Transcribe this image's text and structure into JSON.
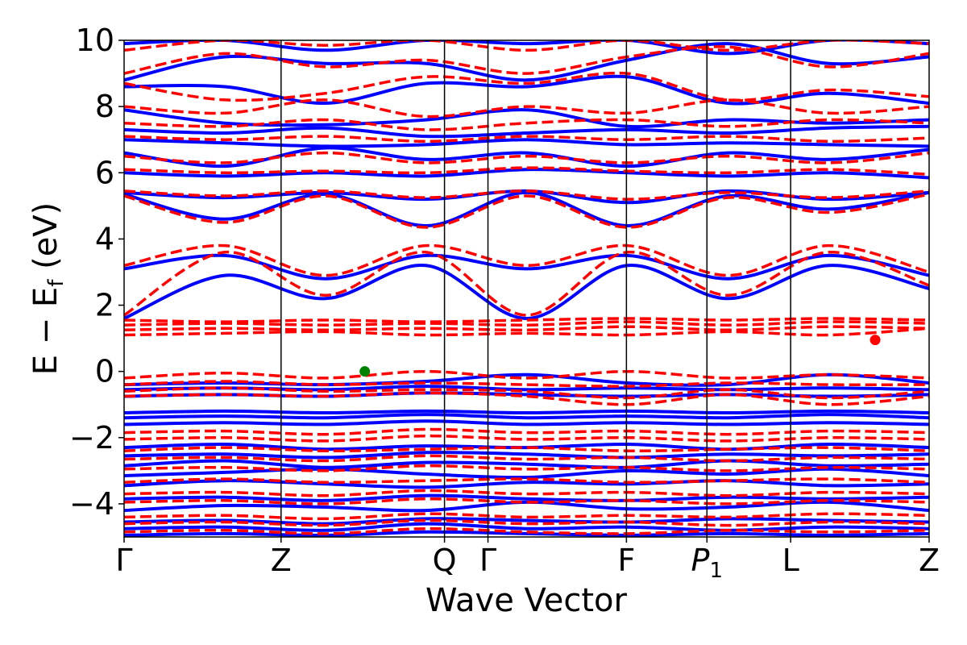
{
  "chart_data": {
    "type": "line",
    "title": "",
    "xlabel": "Wave Vector",
    "ylabel": "E − E_f (eV)",
    "ylabel_parts": {
      "main": "E − E",
      "sub": "f",
      "unit": " (eV)"
    },
    "ylim": [
      -5,
      10
    ],
    "yticks": [
      -4,
      -2,
      0,
      2,
      4,
      6,
      8,
      10
    ],
    "ytick_labels": [
      "−4",
      "−2",
      "0",
      "2",
      "4",
      "6",
      "8",
      "10"
    ],
    "xlim": [
      0,
      10
    ],
    "kpoints": [
      {
        "label": "Γ",
        "x": 0.0
      },
      {
        "label": "Z",
        "x": 1.95
      },
      {
        "label": "Q",
        "x": 3.98
      },
      {
        "label": "Γ",
        "x": 4.52
      },
      {
        "label": "F",
        "x": 6.24
      },
      {
        "label": "P",
        "sub": "1",
        "x": 7.24
      },
      {
        "label": "L",
        "x": 8.28
      },
      {
        "label": "Z",
        "x": 10.0
      }
    ],
    "grid": false,
    "legend": "none",
    "series": [
      {
        "style": "solid",
        "color": "#0000ff",
        "bands": [
          [
            -4.95,
            -4.9,
            -4.95,
            -4.85,
            -4.9,
            -4.95,
            -4.9,
            -4.95,
            -4.9
          ],
          [
            -4.75,
            -4.7,
            -4.8,
            -4.6,
            -4.75,
            -4.7,
            -4.8,
            -4.7,
            -4.75
          ],
          [
            -4.55,
            -4.5,
            -4.6,
            -4.45,
            -4.5,
            -4.55,
            -4.45,
            -4.5,
            -4.55
          ],
          [
            -4.2,
            -4.05,
            -4.1,
            -4.2,
            -3.95,
            -4.15,
            -4.1,
            -3.95,
            -4.2
          ],
          [
            -3.85,
            -3.8,
            -3.9,
            -3.75,
            -3.85,
            -3.9,
            -3.8,
            -3.85,
            -3.8
          ],
          [
            -3.45,
            -3.3,
            -3.4,
            -3.5,
            -3.35,
            -3.4,
            -3.3,
            -3.45,
            -3.4
          ],
          [
            -3.15,
            -3.05,
            -2.95,
            -3.1,
            -3.2,
            -3.0,
            -3.1,
            -2.95,
            -3.15
          ],
          [
            -2.85,
            -2.7,
            -2.9,
            -2.75,
            -2.8,
            -2.9,
            -2.7,
            -2.85,
            -2.8
          ],
          [
            -2.55,
            -2.5,
            -2.6,
            -2.45,
            -2.5,
            -2.6,
            -2.5,
            -2.55,
            -2.5
          ],
          [
            -2.3,
            -2.2,
            -2.35,
            -2.25,
            -2.3,
            -2.2,
            -2.35,
            -2.2,
            -2.3
          ],
          [
            -1.6,
            -1.55,
            -1.6,
            -1.5,
            -1.6,
            -1.55,
            -1.6,
            -1.55,
            -1.6
          ],
          [
            -1.4,
            -1.35,
            -1.4,
            -1.3,
            -1.4,
            -1.35,
            -1.4,
            -1.3,
            -1.4
          ],
          [
            -1.25,
            -1.2,
            -1.25,
            -1.2,
            -1.25,
            -1.2,
            -1.25,
            -1.2,
            -1.25
          ],
          [
            -0.75,
            -0.7,
            -0.75,
            -0.65,
            -0.7,
            -0.75,
            -0.7,
            -0.75,
            -0.7
          ],
          [
            -0.55,
            -0.5,
            -0.55,
            -0.45,
            -0.55,
            -0.5,
            -0.55,
            -0.5,
            -0.55
          ],
          [
            -0.4,
            -0.35,
            -0.4,
            -0.3,
            -0.1,
            -0.35,
            -0.4,
            -0.1,
            -0.35
          ],
          [
            1.6,
            2.9,
            2.2,
            3.2,
            1.6,
            3.2,
            2.2,
            3.2,
            2.5
          ],
          [
            3.1,
            3.5,
            2.8,
            3.5,
            3.1,
            3.5,
            2.8,
            3.5,
            2.9
          ],
          [
            5.35,
            4.6,
            5.35,
            4.4,
            5.4,
            4.4,
            5.3,
            4.9,
            5.4
          ],
          [
            5.4,
            5.25,
            5.4,
            5.2,
            5.45,
            5.1,
            5.45,
            5.2,
            5.4
          ],
          [
            6.0,
            5.9,
            6.0,
            5.9,
            6.1,
            6.0,
            5.9,
            6.0,
            5.85
          ],
          [
            6.6,
            6.2,
            6.75,
            6.4,
            6.6,
            6.2,
            6.6,
            6.4,
            6.7
          ],
          [
            7.0,
            6.9,
            6.8,
            6.85,
            7.0,
            6.85,
            6.9,
            6.85,
            6.8
          ],
          [
            7.3,
            7.2,
            7.35,
            7.1,
            7.2,
            7.3,
            7.2,
            7.35,
            7.4
          ],
          [
            7.9,
            7.5,
            7.45,
            7.6,
            7.9,
            7.4,
            7.6,
            7.5,
            7.6
          ],
          [
            8.6,
            8.6,
            8.1,
            8.7,
            8.6,
            8.9,
            8.1,
            8.4,
            8.1
          ],
          [
            8.8,
            9.5,
            9.3,
            9.3,
            8.8,
            9.4,
            9.9,
            9.3,
            9.5
          ],
          [
            9.9,
            10.0,
            9.7,
            10.0,
            9.9,
            10.0,
            9.6,
            10.0,
            9.9
          ]
        ]
      },
      {
        "style": "dashed",
        "color": "#ff0000",
        "bands": [
          [
            -4.85,
            -4.8,
            -4.9,
            -4.75,
            -4.85,
            -4.9,
            -4.8,
            -4.85,
            -4.8
          ],
          [
            -4.6,
            -4.55,
            -4.65,
            -4.5,
            -4.6,
            -4.55,
            -4.65,
            -4.55,
            -4.6
          ],
          [
            -4.4,
            -4.35,
            -4.45,
            -4.3,
            -4.4,
            -4.35,
            -4.4,
            -4.3,
            -4.35
          ],
          [
            -3.95,
            -3.9,
            -4.0,
            -3.85,
            -3.95,
            -3.9,
            -4.0,
            -3.9,
            -3.95
          ],
          [
            -3.7,
            -3.65,
            -3.75,
            -3.6,
            -3.7,
            -3.65,
            -3.75,
            -3.65,
            -3.7
          ],
          [
            -3.35,
            -3.25,
            -3.35,
            -3.3,
            -3.25,
            -3.35,
            -3.3,
            -3.25,
            -3.35
          ],
          [
            -2.95,
            -2.9,
            -3.0,
            -2.85,
            -2.95,
            -2.9,
            -3.0,
            -2.9,
            -2.95
          ],
          [
            -2.65,
            -2.6,
            -2.7,
            -2.55,
            -2.65,
            -2.6,
            -2.7,
            -2.6,
            -2.65
          ],
          [
            -2.4,
            -2.3,
            -2.4,
            -2.35,
            -2.3,
            -2.4,
            -2.35,
            -2.3,
            -2.4
          ],
          [
            -2.05,
            -2.0,
            -2.1,
            -1.95,
            -2.05,
            -2.0,
            -2.1,
            -2.0,
            -2.05
          ],
          [
            -1.85,
            -1.8,
            -1.9,
            -1.75,
            -1.85,
            -1.8,
            -1.9,
            -1.8,
            -1.85
          ],
          [
            -0.75,
            -0.7,
            -0.75,
            -0.65,
            -0.75,
            -1.0,
            -0.7,
            -1.0,
            -0.75
          ],
          [
            -0.6,
            -0.5,
            -0.6,
            -0.55,
            -0.6,
            -0.8,
            -0.55,
            -0.8,
            -0.6
          ],
          [
            -0.4,
            -0.3,
            -0.4,
            -0.35,
            -0.4,
            -0.45,
            -0.35,
            -0.4,
            -0.4
          ],
          [
            -0.2,
            -0.05,
            -0.2,
            0.0,
            -0.2,
            0.0,
            -0.2,
            -0.1,
            -0.2
          ],
          [
            1.1,
            1.15,
            1.2,
            1.1,
            1.15,
            1.1,
            1.2,
            1.1,
            1.3
          ],
          [
            1.25,
            1.3,
            1.25,
            1.3,
            1.25,
            1.35,
            1.25,
            1.35,
            1.3
          ],
          [
            1.4,
            1.45,
            1.4,
            1.45,
            1.4,
            1.5,
            1.4,
            1.5,
            1.45
          ],
          [
            1.55,
            1.5,
            1.55,
            1.5,
            1.55,
            1.6,
            1.55,
            1.6,
            1.55
          ],
          [
            1.7,
            3.6,
            2.3,
            3.6,
            1.7,
            3.6,
            2.3,
            3.6,
            2.6
          ],
          [
            3.2,
            3.8,
            2.9,
            3.8,
            3.2,
            3.8,
            2.9,
            3.8,
            3.0
          ],
          [
            5.3,
            4.5,
            5.3,
            4.35,
            5.3,
            4.35,
            5.25,
            4.8,
            5.35
          ],
          [
            5.45,
            5.3,
            5.45,
            5.25,
            5.45,
            5.2,
            5.4,
            5.25,
            5.45
          ],
          [
            6.1,
            6.0,
            6.05,
            6.0,
            6.15,
            6.05,
            6.0,
            6.1,
            5.95
          ],
          [
            6.5,
            6.3,
            6.6,
            6.3,
            6.5,
            6.3,
            6.5,
            6.3,
            6.6
          ],
          [
            7.1,
            7.0,
            7.1,
            6.95,
            7.1,
            7.0,
            7.1,
            6.95,
            7.05
          ],
          [
            7.5,
            7.4,
            7.6,
            7.3,
            7.5,
            7.6,
            7.4,
            7.6,
            7.5
          ],
          [
            8.0,
            7.8,
            8.2,
            7.7,
            8.0,
            7.8,
            8.2,
            7.8,
            8.0
          ],
          [
            8.7,
            8.2,
            8.4,
            8.9,
            8.7,
            9.0,
            8.2,
            8.5,
            8.3
          ],
          [
            9.0,
            9.6,
            9.2,
            9.4,
            9.0,
            9.5,
            9.8,
            9.2,
            9.6
          ],
          [
            9.7,
            10.0,
            9.85,
            10.0,
            9.7,
            10.0,
            9.7,
            10.0,
            9.9
          ]
        ]
      }
    ],
    "markers": [
      {
        "x": 2.99,
        "y": 0.0,
        "color": "#008000"
      },
      {
        "x": 9.33,
        "y": 0.95,
        "color": "#ff0000"
      }
    ]
  }
}
